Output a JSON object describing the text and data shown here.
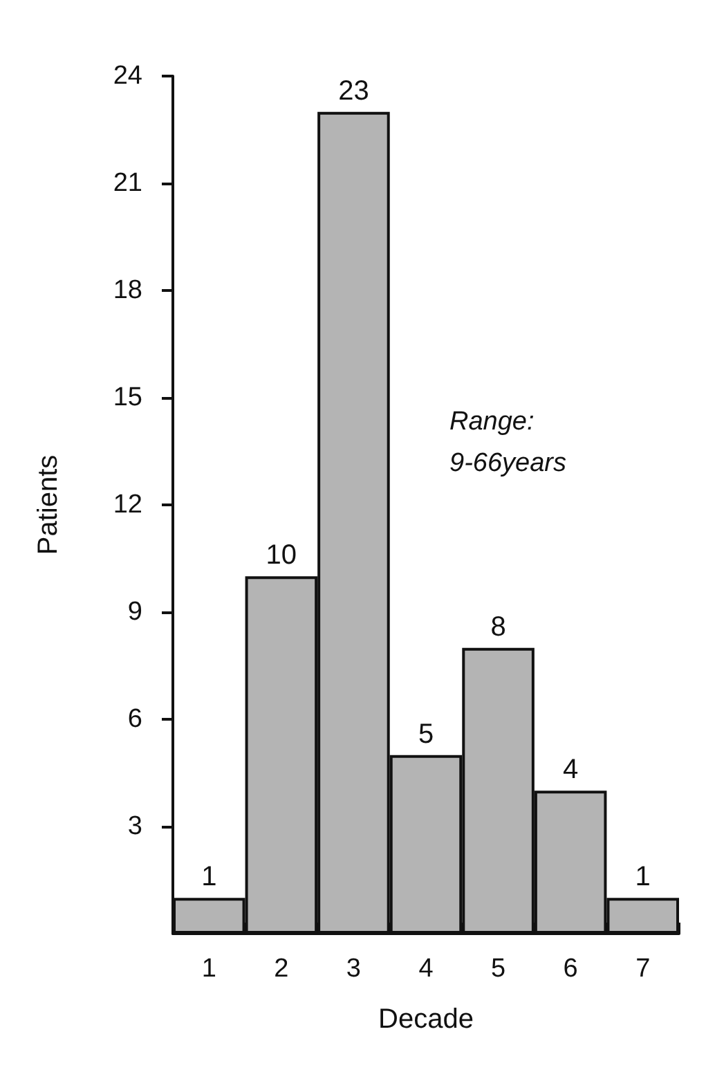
{
  "chart_data": {
    "type": "bar",
    "xlabel": "Decade",
    "ylabel": "Patients",
    "categories": [
      "1",
      "2",
      "3",
      "4",
      "5",
      "6",
      "7"
    ],
    "values": [
      1,
      10,
      23,
      5,
      8,
      4,
      1
    ],
    "color": "#b4b4b4",
    "data_labels": true,
    "ylim": [
      0,
      24
    ],
    "yticks": [
      3,
      6,
      9,
      12,
      15,
      18,
      21,
      24
    ],
    "grid": false,
    "annotations": [
      "Range: 9-66years"
    ]
  }
}
